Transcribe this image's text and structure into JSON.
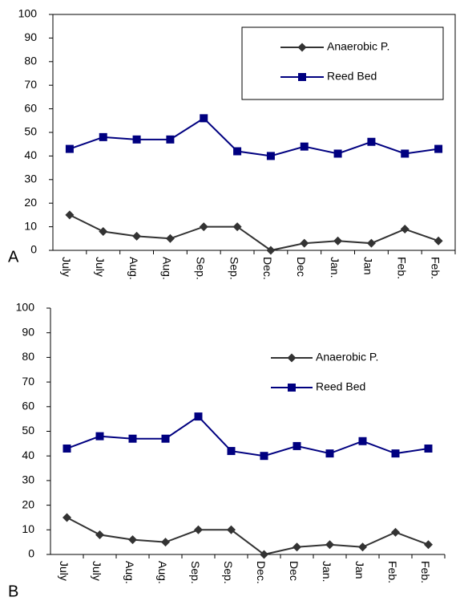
{
  "chart_data": [
    {
      "type": "line",
      "panel_label": "A",
      "categories": [
        "July",
        "July",
        "Aug.",
        "Aug.",
        "Sep.",
        "Sep.",
        "Dec.",
        "Dec",
        "Jan.",
        "Jan",
        "Feb.",
        "Feb."
      ],
      "series": [
        {
          "name": "Anaerobic P.",
          "color": "#333333",
          "marker": "diamond",
          "values": [
            15,
            8,
            6,
            5,
            10,
            10,
            0,
            3,
            4,
            3,
            9,
            4
          ]
        },
        {
          "name": "Reed Bed",
          "color": "#000080",
          "marker": "square",
          "values": [
            43,
            48,
            47,
            47,
            56,
            42,
            40,
            44,
            41,
            46,
            41,
            43
          ]
        }
      ],
      "ylim": [
        0,
        100
      ],
      "yticks": [
        0,
        10,
        20,
        30,
        40,
        50,
        60,
        70,
        80,
        90,
        100
      ],
      "grid": false,
      "frame": true,
      "legend_position": "upper right",
      "legend_border": true
    },
    {
      "type": "line",
      "panel_label": "B",
      "categories": [
        "July",
        "July",
        "Aug.",
        "Aug.",
        "Sep.",
        "Sep.",
        "Dec.",
        "Dec",
        "Jan.",
        "Jan",
        "Feb.",
        "Feb."
      ],
      "series": [
        {
          "name": "Anaerobic P.",
          "color": "#333333",
          "marker": "diamond",
          "values": [
            15,
            8,
            6,
            5,
            10,
            10,
            0,
            3,
            4,
            3,
            9,
            4
          ]
        },
        {
          "name": "Reed Bed",
          "color": "#000080",
          "marker": "square",
          "values": [
            43,
            48,
            47,
            47,
            56,
            42,
            40,
            44,
            41,
            46,
            41,
            43
          ]
        }
      ],
      "ylim": [
        0,
        100
      ],
      "yticks": [
        0,
        10,
        20,
        30,
        40,
        50,
        60,
        70,
        80,
        90,
        100
      ],
      "grid": false,
      "frame": false,
      "legend_position": "upper right",
      "legend_border": false
    }
  ]
}
